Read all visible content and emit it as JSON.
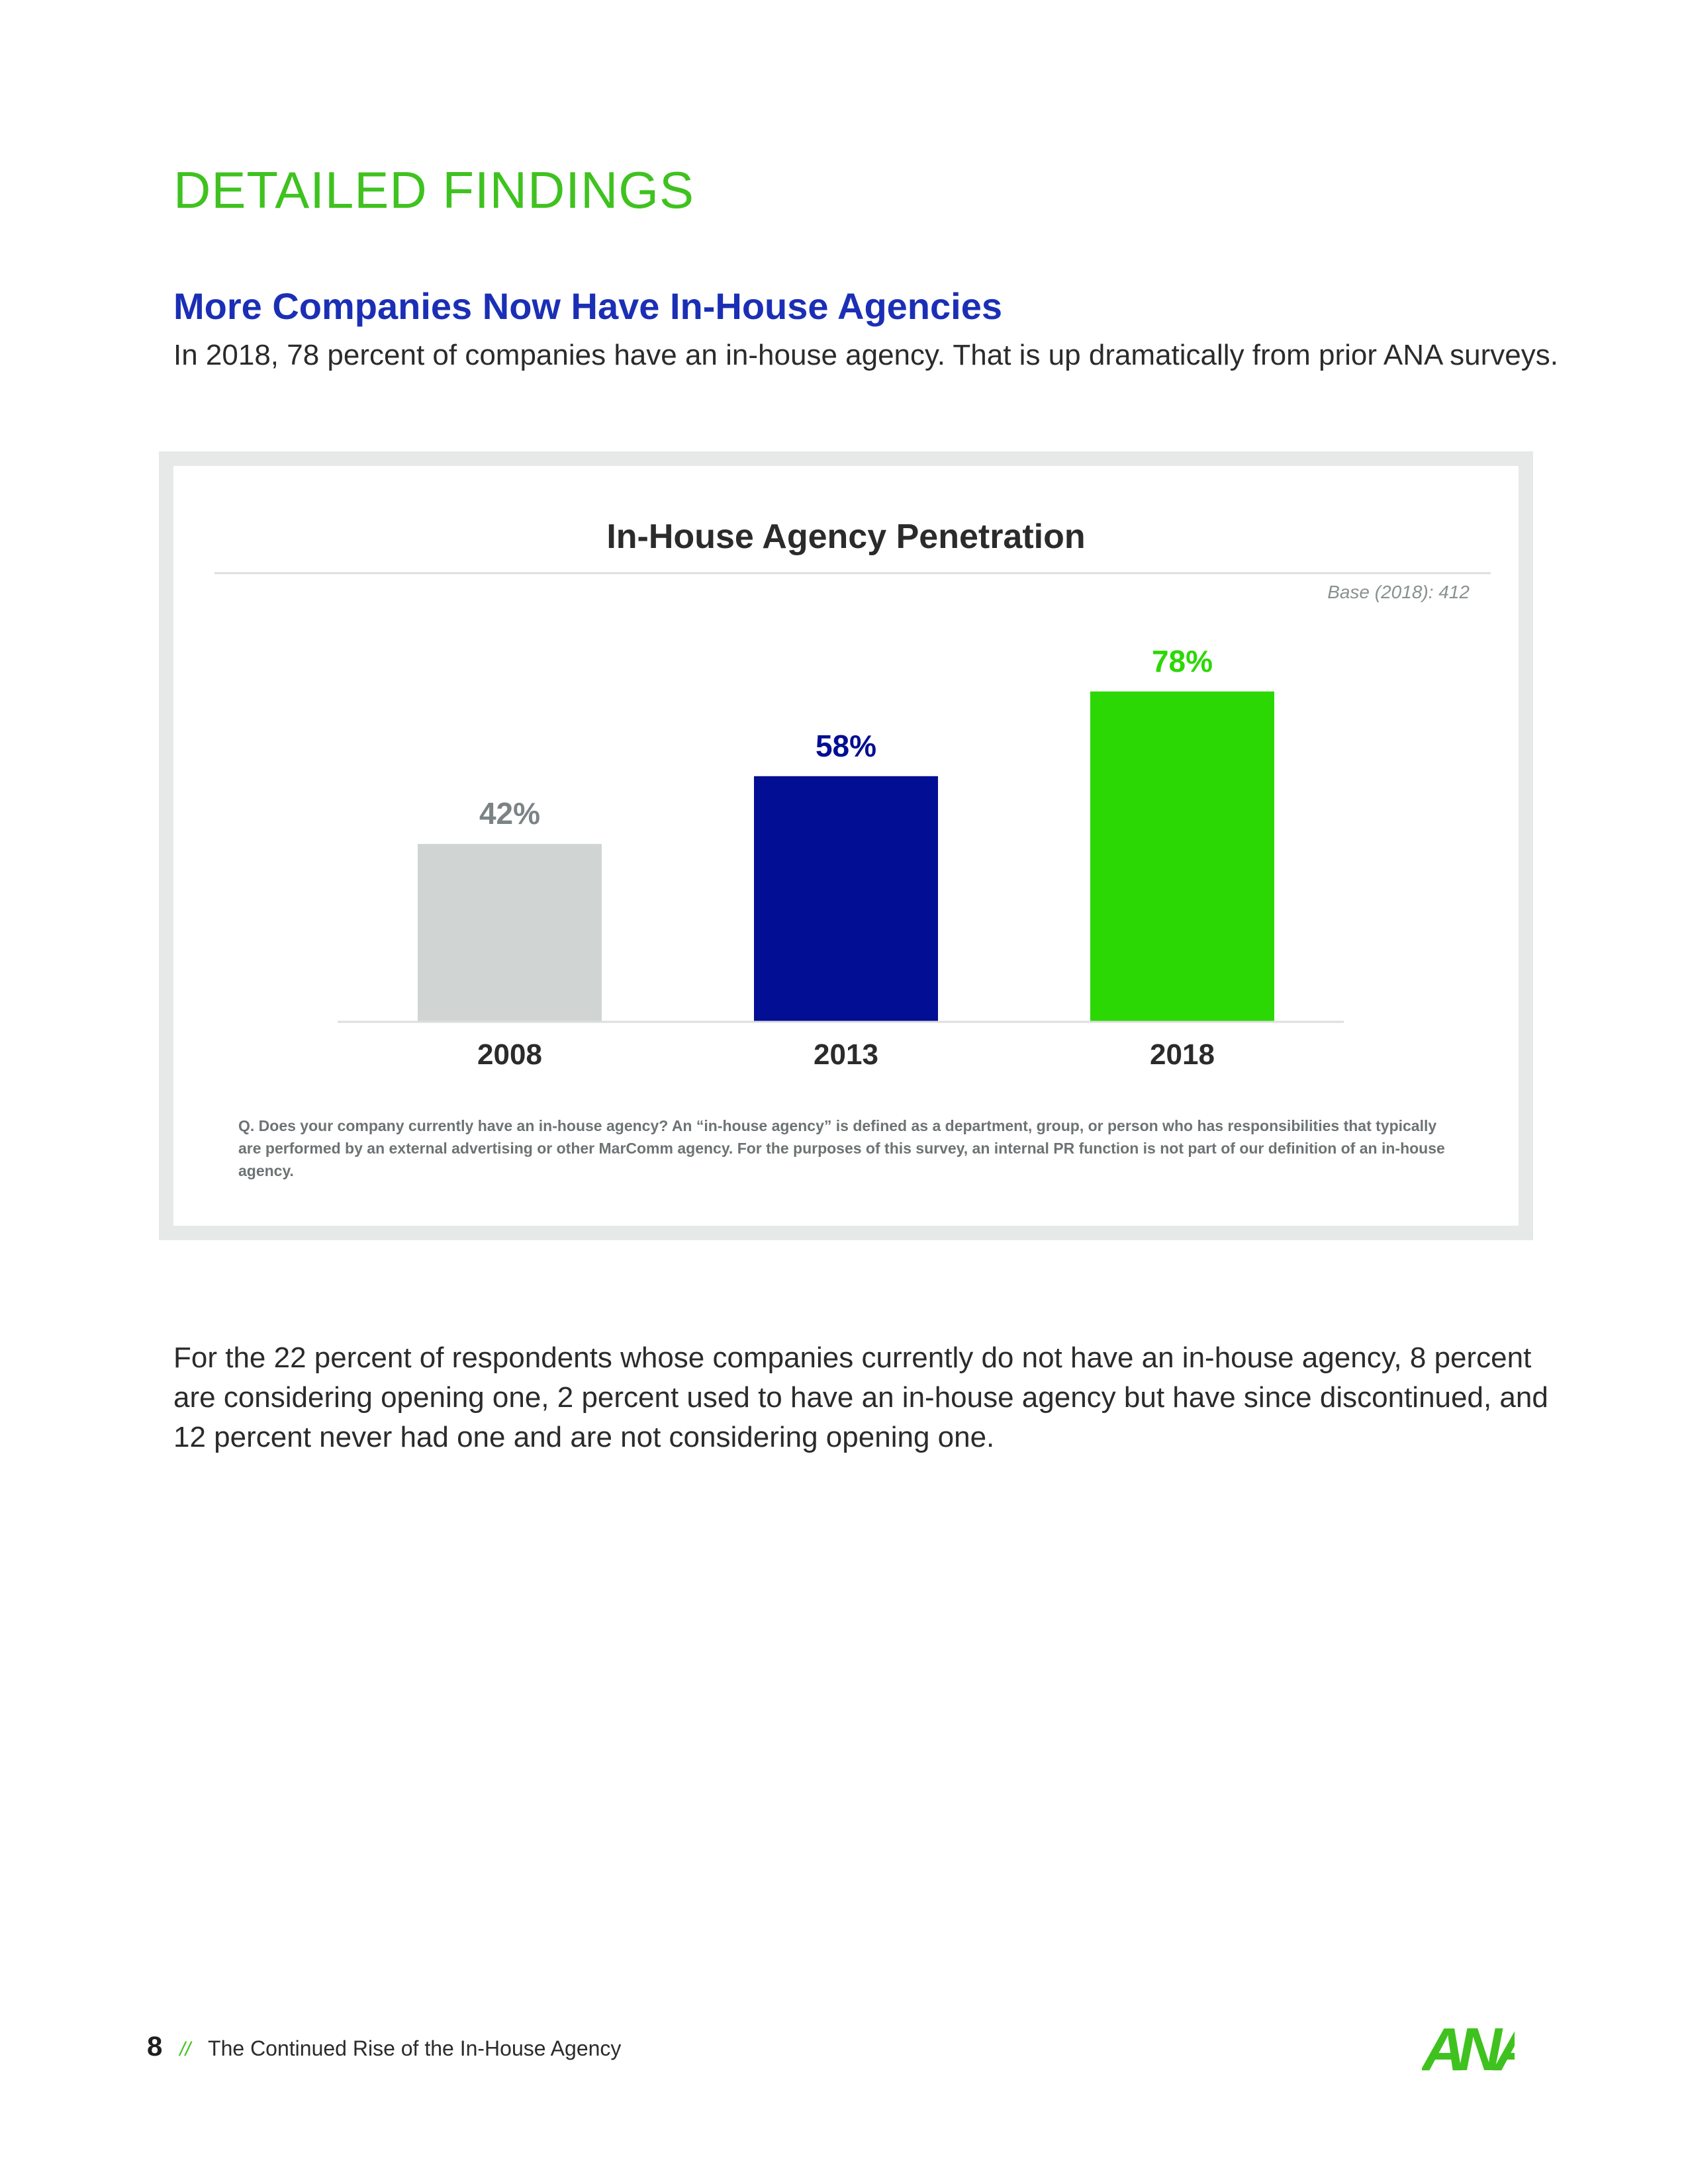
{
  "page": {
    "section_title": "DETAILED FINDINGS",
    "subhead": "More Companies Now Have In-House Agencies",
    "intro": "In 2018, 78 percent of companies have an in-house agency. That is up dramatically from prior ANA surveys.",
    "body": "For the 22 percent of respondents whose companies currently do not have an in-house agency, 8 percent are considering opening one, 2 percent used to have an in-house agency but have since discontinued, and 12 percent never had one and are not considering opening one.",
    "footer": {
      "page_number": "8",
      "separator": "//",
      "doc_title": "The Continued Rise of the In-House Agency",
      "logo_text": "ANA"
    }
  },
  "chart_data": {
    "type": "bar",
    "title": "In-House Agency Penetration",
    "base_note": "Base (2018): 412",
    "categories": [
      "2008",
      "2013",
      "2018"
    ],
    "values": [
      42,
      58,
      78
    ],
    "value_labels": [
      "42%",
      "58%",
      "78%"
    ],
    "colors": [
      "#d0d5d4",
      "#020e93",
      "#2bd803"
    ],
    "label_colors": [
      "#7b8385",
      "#020e93",
      "#2bd803"
    ],
    "ylim": [
      0,
      100
    ],
    "grid": false,
    "footnote": "Q. Does your company currently have an in-house agency? An “in-house agency” is defined as a department, group, or person who has responsibilities that typically are performed by an external advertising or other MarComm agency. For the purposes of this survey, an internal PR function is not part of our definition of an in-house agency."
  }
}
